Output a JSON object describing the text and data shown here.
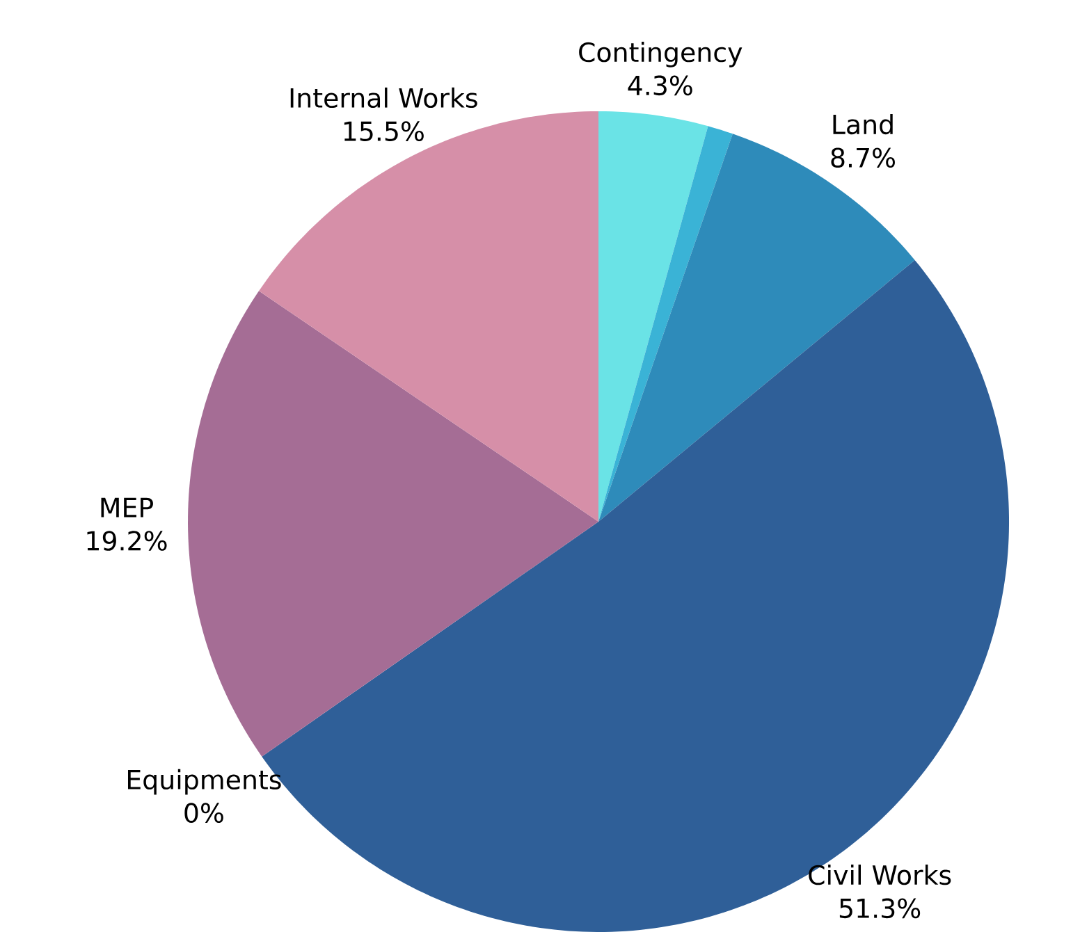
{
  "chart_data": {
    "type": "pie",
    "categories": [
      "Contingency",
      null,
      "Land",
      "Civil Works",
      "Equipments",
      "MEP",
      "Internal Works"
    ],
    "values": [
      4.3,
      1.0,
      8.7,
      51.3,
      0,
      19.2,
      15.5
    ],
    "colors": [
      "#6ae3e6",
      "#3ab3d6",
      "#2e8bba",
      "#2f5f98",
      "#7b5f9c",
      "#a56d95",
      "#d68fa8"
    ],
    "value_labels": [
      "4.3%",
      null,
      "8.7%",
      "51.3%",
      "0%",
      "19.2%",
      "15.5%"
    ]
  }
}
